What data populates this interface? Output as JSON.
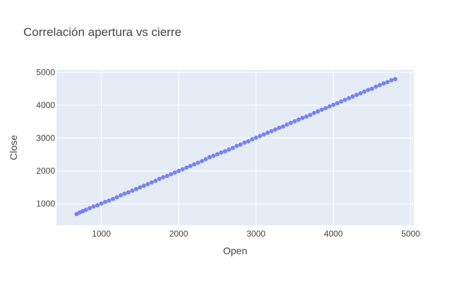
{
  "chart_data": {
    "type": "scatter",
    "title": "Correlación apertura vs cierre",
    "xlabel": "Open",
    "ylabel": "Close",
    "xlim": [
      420,
      5040
    ],
    "ylim": [
      350,
      5070
    ],
    "x_ticks": [
      1000,
      2000,
      3000,
      4000,
      5000
    ],
    "y_ticks": [
      1000,
      2000,
      3000,
      4000,
      5000
    ],
    "x_tick_labels": [
      "1000",
      "2000",
      "3000",
      "4000",
      "5000"
    ],
    "y_tick_labels": [
      "1000",
      "2000",
      "3000",
      "4000",
      "5000"
    ],
    "grid": true,
    "legend": "none",
    "series": [
      {
        "x": [
          680,
          720,
          760,
          800,
          850,
          900,
          950,
          1000,
          1050,
          1100,
          1150,
          1200,
          1250,
          1300,
          1350,
          1400,
          1450,
          1500,
          1550,
          1600,
          1650,
          1700,
          1750,
          1800,
          1850,
          1900,
          1950,
          2000,
          2050,
          2100,
          2150,
          2200,
          2250,
          2300,
          2350,
          2400,
          2450,
          2500,
          2550,
          2600,
          2650,
          2700,
          2750,
          2800,
          2850,
          2900,
          2950,
          3000,
          3050,
          3100,
          3150,
          3200,
          3250,
          3300,
          3350,
          3400,
          3450,
          3500,
          3550,
          3600,
          3650,
          3700,
          3750,
          3800,
          3850,
          3900,
          3950,
          4000,
          4050,
          4100,
          4150,
          4200,
          4250,
          4300,
          4350,
          4400,
          4450,
          4500,
          4550,
          4600,
          4650,
          4700,
          4750,
          4800
        ],
        "y": [
          690,
          740,
          780,
          820,
          870,
          920,
          960,
          1010,
          1060,
          1100,
          1150,
          1200,
          1260,
          1310,
          1350,
          1400,
          1450,
          1500,
          1550,
          1600,
          1650,
          1700,
          1760,
          1810,
          1850,
          1900,
          1950,
          2000,
          2050,
          2100,
          2150,
          2200,
          2250,
          2300,
          2360,
          2420,
          2460,
          2510,
          2560,
          2600,
          2650,
          2700,
          2760,
          2800,
          2860,
          2900,
          2960,
          3010,
          3060,
          3110,
          3160,
          3210,
          3260,
          3310,
          3350,
          3410,
          3460,
          3510,
          3560,
          3610,
          3650,
          3700,
          3760,
          3810,
          3860,
          3910,
          3960,
          4010,
          4060,
          4110,
          4160,
          4210,
          4260,
          4310,
          4360,
          4410,
          4460,
          4500,
          4560,
          4610,
          4660,
          4700,
          4760,
          4790
        ]
      }
    ],
    "colors": {
      "marker": "#636efa",
      "plot_bg": "#e5ecf6",
      "grid": "#ffffff",
      "text": "#444444"
    }
  }
}
